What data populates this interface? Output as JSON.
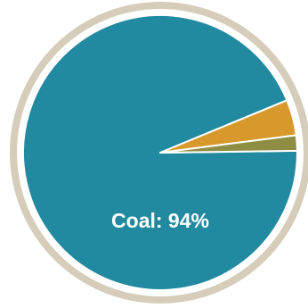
{
  "chart_data": {
    "type": "pie",
    "title": "",
    "slices": [
      {
        "value": 94,
        "color": "#228aa0"
      },
      {
        "value": 4.2,
        "color": "#d8992c"
      },
      {
        "value": 1.8,
        "color": "#8d8d43"
      }
    ],
    "data_labels": [
      "Coal: 94%"
    ],
    "colors": {
      "ring": "#d5ccb9",
      "slice_border": "#ffffff",
      "label_text": "#ffffff"
    }
  }
}
